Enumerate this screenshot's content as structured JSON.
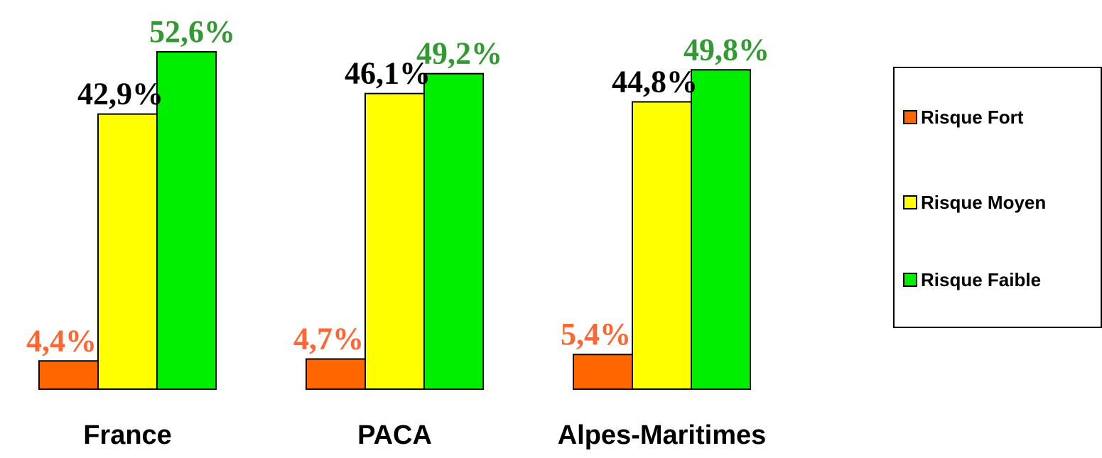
{
  "chart_data": {
    "type": "bar",
    "categories": [
      "France",
      "PACA",
      "Alpes-Maritimes"
    ],
    "series": [
      {
        "name": "Risque Fort",
        "color": "#FF6600",
        "label_color": "#FF6633",
        "values": [
          4.4,
          4.7,
          5.4
        ],
        "labels": [
          "4,4%",
          "4,7%",
          "5,4%"
        ]
      },
      {
        "name": "Risque Moyen",
        "color": "#FFFF00",
        "label_color": "#000000",
        "values": [
          42.9,
          46.1,
          44.8
        ],
        "labels": [
          "42,9%",
          "46,1%",
          "44,8%"
        ]
      },
      {
        "name": "Risque Faible",
        "color": "#00EE00",
        "label_color": "#339933",
        "values": [
          52.6,
          49.2,
          49.8
        ],
        "labels": [
          "52,6%",
          "49,2%",
          "49,8%"
        ]
      }
    ],
    "legend": {
      "position": "right",
      "border": true
    },
    "ylim": [
      0,
      55
    ],
    "grid": false,
    "axes_visible": false
  }
}
